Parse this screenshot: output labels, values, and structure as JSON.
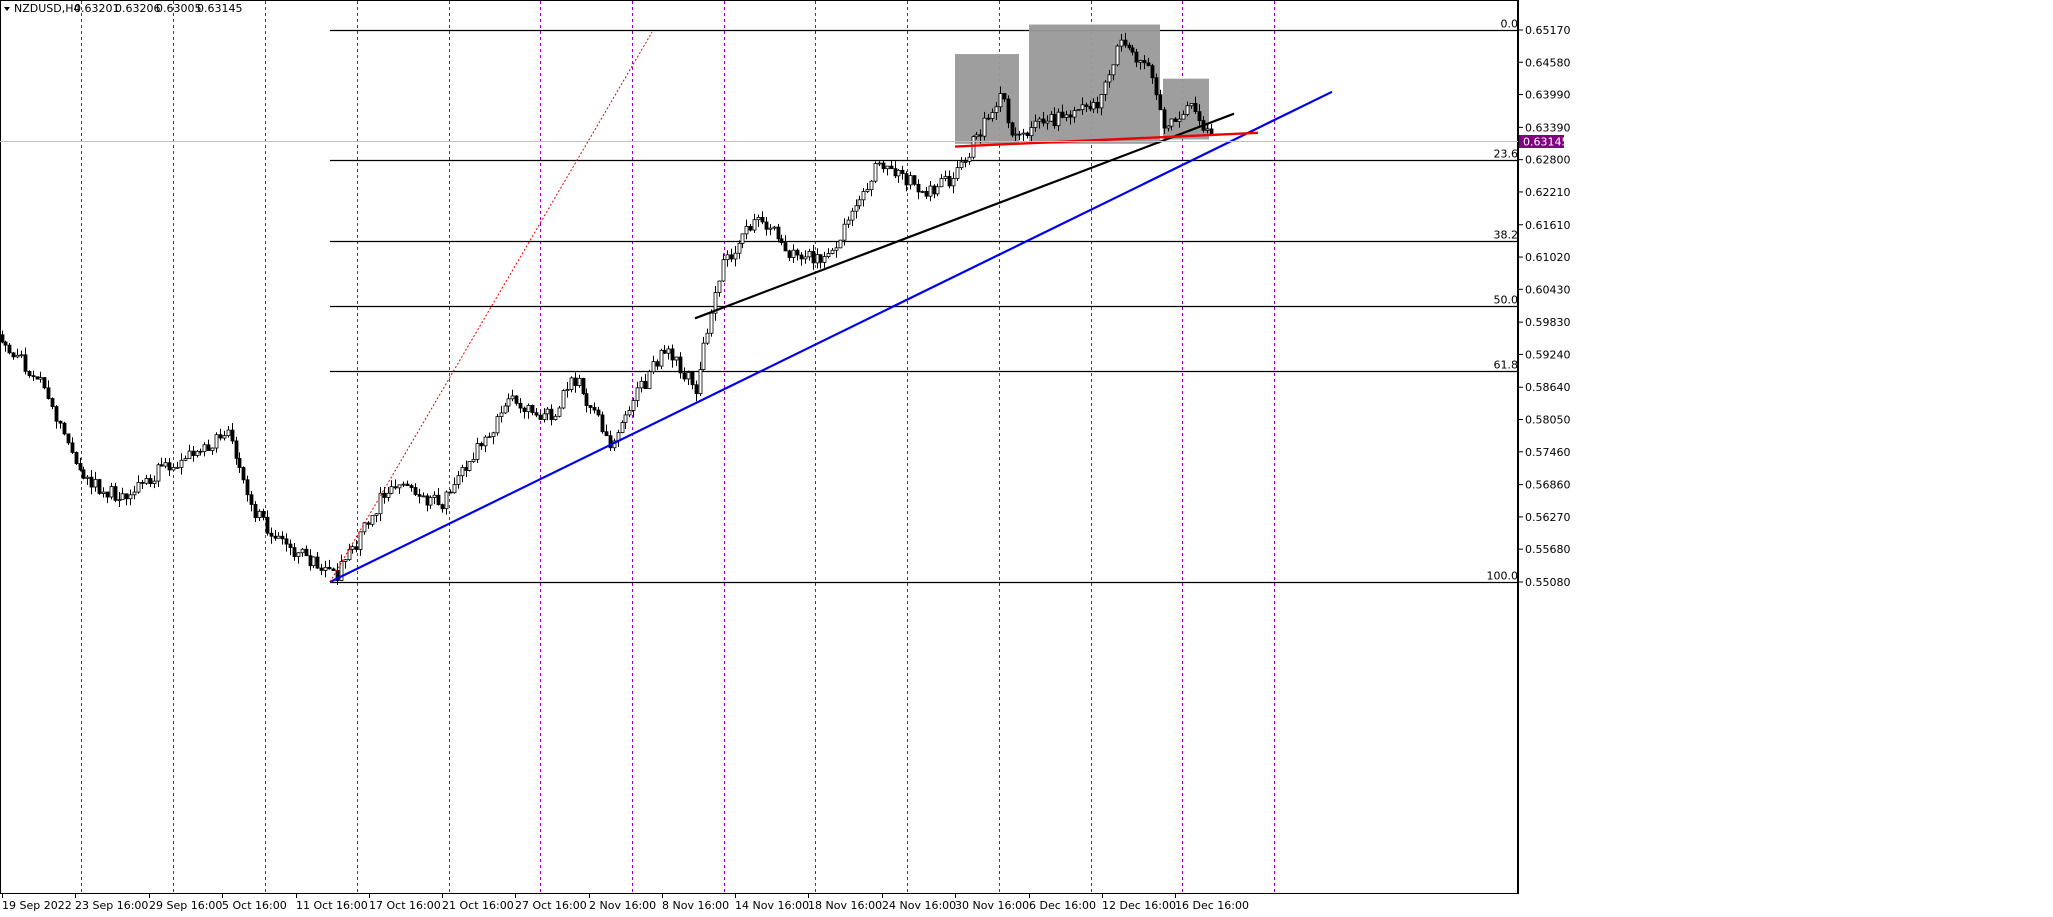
{
  "header": {
    "symbol": "NZDUSD,H4",
    "open": "0.63201",
    "high": "0.63206",
    "low": "0.63005",
    "close": "0.63145"
  },
  "chart_data": {
    "type": "candlestick",
    "title": "",
    "xlabel": "",
    "ylabel": "",
    "ylim": [
      0.549,
      0.655
    ],
    "y_ticks": [
      "0.65170",
      "0.64580",
      "0.63990",
      "0.63390",
      "0.62800",
      "0.62210",
      "0.61610",
      "0.61020",
      "0.60430",
      "0.59830",
      "0.59240",
      "0.58640",
      "0.58050",
      "0.57460",
      "0.56860",
      "0.56270",
      "0.55680",
      "0.55080"
    ],
    "x_tick_labels": [
      "19 Sep 2022",
      "23 Sep 16:00",
      "29 Sep 16:00",
      "5 Oct 16:00",
      "11 Oct 16:00",
      "17 Oct 16:00",
      "21 Oct 16:00",
      "27 Oct 16:00",
      "2 Nov 16:00",
      "8 Nov 16:00",
      "14 Nov 16:00",
      "18 Nov 16:00",
      "24 Nov 16:00",
      "30 Nov 16:00",
      "6 Dec 16:00",
      "12 Dec 16:00",
      "16 Dec 16:00"
    ],
    "current_price": "0.63145",
    "grid": true,
    "colors": {
      "background": "#ffffff",
      "candle": "#000000",
      "bull_body": "#ffffff",
      "bear_body": "#000000",
      "vgrid": "#9900cc",
      "trend_blue": "#0000ee",
      "trend_black": "#000000",
      "neckline_red": "#ee0000",
      "shade": "#999999",
      "price_label_bg": "#800080"
    },
    "fibonacci": {
      "range": [
        0.5508,
        0.6517
      ],
      "levels": [
        {
          "label": "0.0",
          "price": 0.6517
        },
        {
          "label": "23.6",
          "price": 0.62789
        },
        {
          "label": "38.2",
          "price": 0.61316
        },
        {
          "label": "50.0",
          "price": 0.60125
        },
        {
          "label": "61.8",
          "price": 0.58935
        },
        {
          "label": "100.0",
          "price": 0.5508
        }
      ]
    },
    "path_anchors": [
      {
        "t": 0,
        "price": 0.596
      },
      {
        "t": 40,
        "price": 0.587
      },
      {
        "t": 80,
        "price": 0.57
      },
      {
        "t": 125,
        "price": 0.566
      },
      {
        "t": 165,
        "price": 0.572
      },
      {
        "t": 230,
        "price": 0.578
      },
      {
        "t": 250,
        "price": 0.564
      },
      {
        "t": 290,
        "price": 0.557
      },
      {
        "t": 335,
        "price": 0.5515
      },
      {
        "t": 350,
        "price": 0.556
      },
      {
        "t": 390,
        "price": 0.569
      },
      {
        "t": 440,
        "price": 0.565
      },
      {
        "t": 510,
        "price": 0.584
      },
      {
        "t": 550,
        "price": 0.581
      },
      {
        "t": 575,
        "price": 0.588
      },
      {
        "t": 610,
        "price": 0.576
      },
      {
        "t": 665,
        "price": 0.594
      },
      {
        "t": 695,
        "price": 0.586
      },
      {
        "t": 720,
        "price": 0.608
      },
      {
        "t": 760,
        "price": 0.618
      },
      {
        "t": 790,
        "price": 0.611
      },
      {
        "t": 830,
        "price": 0.61
      },
      {
        "t": 880,
        "price": 0.628
      },
      {
        "t": 925,
        "price": 0.622
      },
      {
        "t": 955,
        "price": 0.625
      },
      {
        "t": 1000,
        "price": 0.64
      },
      {
        "t": 1015,
        "price": 0.632
      },
      {
        "t": 1060,
        "price": 0.636
      },
      {
        "t": 1100,
        "price": 0.639
      },
      {
        "t": 1120,
        "price": 0.65
      },
      {
        "t": 1150,
        "price": 0.644
      },
      {
        "t": 1165,
        "price": 0.633
      },
      {
        "t": 1190,
        "price": 0.638
      },
      {
        "t": 1214,
        "price": 0.63145
      }
    ],
    "trendlines": [
      {
        "name": "blue-support",
        "from": [
          0.5508,
          330
        ],
        "to": [
          0.6404,
          1332
        ]
      },
      {
        "name": "black-support",
        "from": [
          0.599,
          695
        ],
        "to": [
          0.6364,
          1234
        ]
      },
      {
        "name": "red-neckline",
        "from": [
          0.6304,
          955
        ],
        "to": [
          0.6329,
          1258
        ]
      },
      {
        "name": "red-dotted",
        "from": [
          0.5508,
          330
        ],
        "to": [
          0.6513,
          652
        ]
      }
    ],
    "shaded_boxes": [
      {
        "name": "left-shoulder",
        "t0": 955,
        "t1": 1019,
        "p0": 0.6309,
        "p1": 0.6473
      },
      {
        "name": "head",
        "t0": 1029,
        "t1": 1160,
        "p0": 0.6309,
        "p1": 0.6527
      },
      {
        "name": "right-shoulder",
        "t0": 1163,
        "t1": 1209,
        "p0": 0.6317,
        "p1": 0.6428
      }
    ]
  }
}
